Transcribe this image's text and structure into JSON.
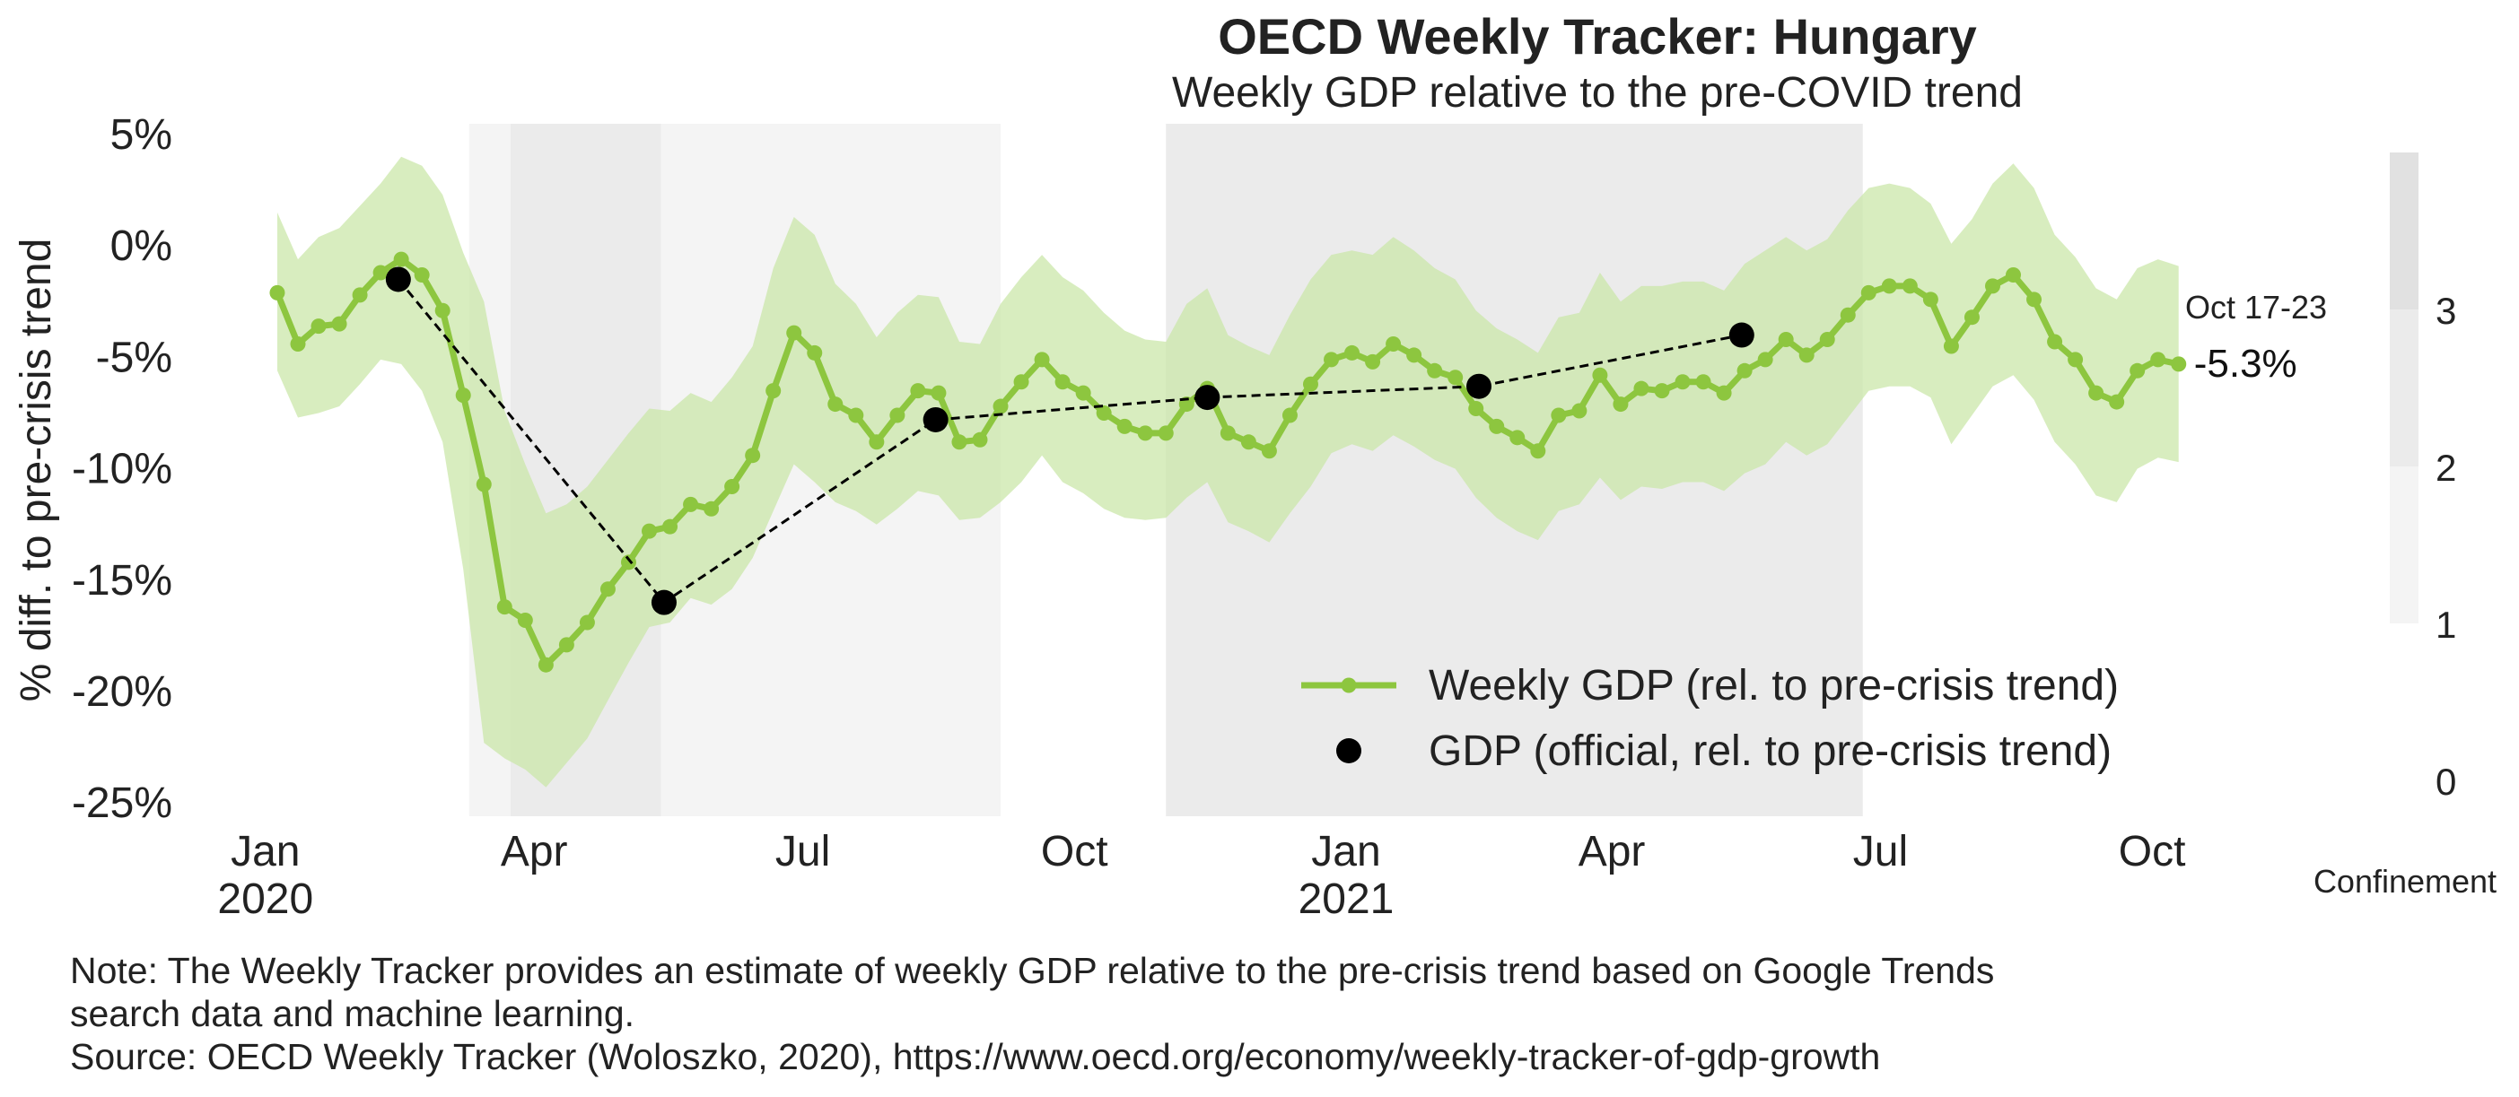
{
  "title": "OECD Weekly Tracker: Hungary",
  "subtitle": "Weekly GDP relative to the pre-COVID trend",
  "note_line1": "Note: The Weekly Tracker provides an estimate of weekly GDP relative to the pre-crisis trend based on Google Trends",
  "note_line2": "search data and machine learning.",
  "source": "Source: OECD Weekly Tracker (Woloszko, 2020), https://www.oecd.org/economy/weekly-tracker-of-gdp-growth",
  "colors": {
    "weekly": "#8dc63f",
    "band": "#c9e6a6",
    "official": "#000000",
    "shade_level_1": "#f4f4f4",
    "shade_level_2": "#ebebeb"
  },
  "chart_data": {
    "type": "line",
    "ylabel": "% diff. to pre-crisis trend",
    "ylim": [
      -26,
      5
    ],
    "y_ticks": [
      5,
      0,
      -5,
      -10,
      -15,
      -20,
      -25
    ],
    "y_tick_labels": [
      "5%",
      "0%",
      "-5%",
      "-10%",
      "-15%",
      "-20%",
      "-25%"
    ],
    "x_ticks": [
      {
        "date": "2020-01-01",
        "label": "Jan",
        "label2": "2020"
      },
      {
        "date": "2020-04-01",
        "label": "Apr",
        "label2": ""
      },
      {
        "date": "2020-07-01",
        "label": "Jul",
        "label2": ""
      },
      {
        "date": "2020-10-01",
        "label": "Oct",
        "label2": ""
      },
      {
        "date": "2021-01-01",
        "label": "Jan",
        "label2": "2021"
      },
      {
        "date": "2021-04-01",
        "label": "Apr",
        "label2": ""
      },
      {
        "date": "2021-07-01",
        "label": "Jul",
        "label2": ""
      },
      {
        "date": "2021-10-01",
        "label": "Oct",
        "label2": ""
      }
    ],
    "weekly_start_date": "2020-01-05",
    "series": [
      {
        "name": "Weekly GDP (rel. to pre-crisis trend)",
        "values": [
          -2.1,
          -4.4,
          -3.6,
          -3.5,
          -2.2,
          -1.2,
          -0.6,
          -1.3,
          -2.9,
          -6.7,
          -10.7,
          -16.2,
          -16.8,
          -18.8,
          -17.9,
          -16.9,
          -15.4,
          -14.2,
          -12.8,
          -12.6,
          -11.6,
          -11.8,
          -10.8,
          -9.4,
          -6.5,
          -3.9,
          -4.8,
          -7.1,
          -7.6,
          -8.8,
          -7.6,
          -6.5,
          -6.6,
          -8.8,
          -8.7,
          -7.2,
          -6.1,
          -5.1,
          -6.1,
          -6.6,
          -7.5,
          -8.1,
          -8.4,
          -8.4,
          -7.1,
          -6.4,
          -8.4,
          -8.8,
          -9.2,
          -7.6,
          -6.2,
          -5.1,
          -4.8,
          -5.2,
          -4.4,
          -4.9,
          -5.6,
          -5.9,
          -7.3,
          -8.1,
          -8.6,
          -9.2,
          -7.6,
          -7.4,
          -5.8,
          -7.1,
          -6.4,
          -6.5,
          -6.1,
          -6.1,
          -6.6,
          -5.6,
          -5.1,
          -4.2,
          -4.9,
          -4.2,
          -3.1,
          -2.1,
          -1.8,
          -1.8,
          -2.4,
          -4.5,
          -3.2,
          -1.8,
          -1.3,
          -2.4,
          -4.3,
          -5.1,
          -6.6,
          -7.0,
          -5.6,
          -5.1,
          -5.3
        ],
        "lower": [
          -5.6,
          -7.7,
          -7.5,
          -7.2,
          -6.2,
          -5.1,
          -5.3,
          -6.5,
          -8.8,
          -14.5,
          -22.3,
          -23.0,
          -23.5,
          -24.3,
          -23.2,
          -22.1,
          -20.4,
          -18.7,
          -17.1,
          -16.9,
          -15.8,
          -16.1,
          -15.4,
          -14.0,
          -11.9,
          -9.8,
          -10.6,
          -11.5,
          -11.9,
          -12.5,
          -11.8,
          -11.0,
          -11.2,
          -12.3,
          -12.2,
          -11.5,
          -10.6,
          -9.4,
          -10.6,
          -11.1,
          -11.8,
          -12.2,
          -12.3,
          -12.2,
          -11.3,
          -10.6,
          -12.4,
          -12.8,
          -13.3,
          -12.0,
          -10.8,
          -9.3,
          -8.9,
          -9.2,
          -8.5,
          -9.0,
          -9.6,
          -10.0,
          -11.3,
          -12.2,
          -12.8,
          -13.2,
          -11.9,
          -11.6,
          -10.4,
          -11.4,
          -10.8,
          -10.9,
          -10.6,
          -10.6,
          -11.0,
          -10.2,
          -9.8,
          -8.8,
          -9.4,
          -8.9,
          -7.7,
          -6.5,
          -6.3,
          -6.3,
          -6.8,
          -8.9,
          -7.6,
          -6.3,
          -5.8,
          -6.9,
          -8.8,
          -9.8,
          -11.2,
          -11.5,
          -10.0,
          -9.5,
          -9.7
        ],
        "upper": [
          1.5,
          -0.6,
          0.4,
          0.8,
          1.8,
          2.8,
          4.0,
          3.6,
          2.3,
          -0.3,
          -2.5,
          -7.4,
          -9.8,
          -12.0,
          -11.6,
          -10.8,
          -9.6,
          -8.4,
          -7.3,
          -7.4,
          -6.6,
          -7.0,
          -5.9,
          -4.5,
          -1.0,
          1.3,
          0.5,
          -1.7,
          -2.6,
          -4.1,
          -3.0,
          -2.2,
          -2.3,
          -4.3,
          -4.4,
          -2.6,
          -1.4,
          -0.4,
          -1.4,
          -2.0,
          -3.0,
          -3.8,
          -4.2,
          -4.3,
          -2.6,
          -1.9,
          -4.0,
          -4.5,
          -4.9,
          -3.1,
          -1.5,
          -0.4,
          -0.2,
          -0.4,
          0.4,
          -0.2,
          -1.0,
          -1.5,
          -2.9,
          -3.7,
          -4.2,
          -4.8,
          -3.2,
          -3.0,
          -1.2,
          -2.5,
          -1.8,
          -1.8,
          -1.6,
          -1.6,
          -2.0,
          -0.8,
          -0.2,
          0.4,
          -0.2,
          0.3,
          1.6,
          2.6,
          2.8,
          2.6,
          1.9,
          0.1,
          1.2,
          2.8,
          3.7,
          2.6,
          0.5,
          -0.5,
          -1.9,
          -2.4,
          -1.0,
          -0.6,
          -0.9
        ]
      },
      {
        "name": "GDP (official, rel. to pre-crisis trend)",
        "points": [
          {
            "date": "2020-02-15",
            "value": -1.5
          },
          {
            "date": "2020-05-15",
            "value": -16.0
          },
          {
            "date": "2020-08-15",
            "value": -7.8
          },
          {
            "date": "2020-11-15",
            "value": -6.8
          },
          {
            "date": "2021-02-15",
            "value": -6.3
          },
          {
            "date": "2021-05-15",
            "value": -4.0
          }
        ]
      }
    ],
    "confinement": [
      {
        "start": "2020-03-10",
        "end": "2020-03-24",
        "level": 1
      },
      {
        "start": "2020-03-24",
        "end": "2020-05-14",
        "level": 2
      },
      {
        "start": "2020-05-14",
        "end": "2020-09-06",
        "level": 1
      },
      {
        "start": "2020-11-01",
        "end": "2021-06-25",
        "level": 2
      }
    ],
    "last_label": {
      "date_text": "Oct 17-23",
      "value_text": "-5.3%"
    },
    "legend": {
      "position": "bottom-right"
    },
    "colorbar": {
      "label": "Confinement",
      "ticks": [
        "0",
        "1",
        "2",
        "3"
      ]
    }
  }
}
